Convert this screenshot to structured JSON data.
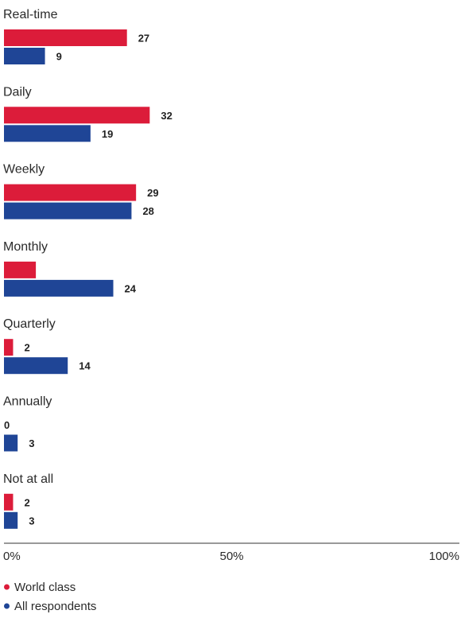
{
  "chart_data": {
    "type": "bar",
    "orientation": "horizontal",
    "categories": [
      "Real-time",
      "Daily",
      "Weekly",
      "Monthly",
      "Quarterly",
      "Annually",
      "Not at all"
    ],
    "series": [
      {
        "name": "World class",
        "color": "#dc1c3a",
        "values": [
          27,
          32,
          29,
          7,
          2,
          0,
          2
        ],
        "labels": [
          "27",
          "32",
          "29",
          "",
          "2",
          "0",
          "2"
        ]
      },
      {
        "name": "All respondents",
        "color": "#1f4596",
        "values": [
          9,
          19,
          28,
          24,
          14,
          3,
          3
        ],
        "labels": [
          "9",
          "19",
          "28",
          "24",
          "14",
          "3",
          "3"
        ]
      }
    ],
    "xlim": [
      0,
      100
    ],
    "ticks": [
      "0%",
      "50%",
      "100%"
    ],
    "tick_values": [
      0,
      50,
      100
    ],
    "grid": false,
    "legend_position": "bottom-left"
  }
}
